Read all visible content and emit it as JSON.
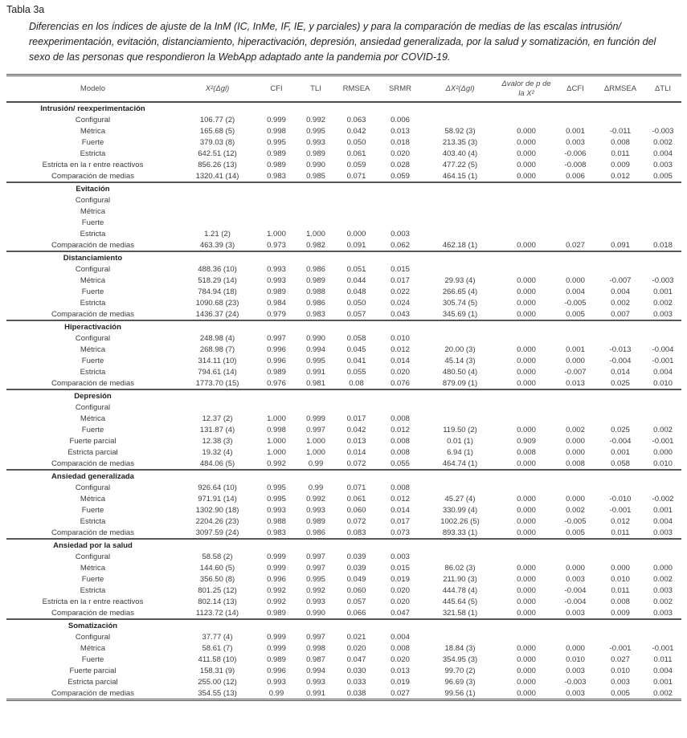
{
  "page": {
    "title": "Tabla 3a",
    "caption": "Diferencias en los índices de ajuste de la InM (IC, InMe, IF, IE, y parciales) y para la comparación de medias de las escalas intrusión/ reexperimentación, evitación, distanciamiento, hiperactivación, depresión, ansiedad generalizada, por la salud y somatización, en función del sexo de las personas que respondieron la WebApp adaptado ante la pandemia por COVID-19."
  },
  "table": {
    "columns": [
      "Modelo",
      "X²(Δgl)",
      "CFI",
      "TLI",
      "RMSEA",
      "SRMR",
      "ΔX²(Δgl)",
      "Δvalor de p de la X²",
      "ΔCFI",
      "ΔRMSEA",
      "ΔTLI"
    ],
    "sections": [
      {
        "name": "Intrusión/ reexperimentación",
        "rows": [
          {
            "label": "Configural",
            "cells": [
              "106.77 (2)",
              "0.999",
              "0.992",
              "0.063",
              "0.006",
              "",
              "",
              "",
              "",
              ""
            ]
          },
          {
            "label": "Métrica",
            "cells": [
              "165.68 (5)",
              "0.998",
              "0.995",
              "0.042",
              "0.013",
              "58.92 (3)",
              "0.000",
              "0.001",
              "-0.011",
              "-0.003"
            ]
          },
          {
            "label": "Fuerte",
            "cells": [
              "379.03 (8)",
              "0.995",
              "0.993",
              "0.050",
              "0.018",
              "213.35 (3)",
              "0.000",
              "0.003",
              "0.008",
              "0.002"
            ]
          },
          {
            "label": "Estricta",
            "cells": [
              "642.51 (12)",
              "0.989",
              "0.989",
              "0.061",
              "0.020",
              "403.40 (4)",
              "0.000",
              "-0.006",
              "0.011",
              "0.004"
            ]
          },
          {
            "label": "Estricta en la r entre reactivos",
            "cells": [
              "856.26 (13)",
              "0.989",
              "0.990",
              "0.059",
              "0.028",
              "477.22 (5)",
              "0.000",
              "-0.008",
              "0.009",
              "0.003"
            ]
          },
          {
            "label": "Comparación de medias",
            "cells": [
              "1320.41 (14)",
              "0.983",
              "0.985",
              "0.071",
              "0.059",
              "464.15 (1)",
              "0.000",
              "0.006",
              "0.012",
              "0.005"
            ]
          }
        ]
      },
      {
        "name": "Evitación",
        "rows": [
          {
            "label": "Configural",
            "cells": [
              "",
              "",
              "",
              "",
              "",
              "",
              "",
              "",
              "",
              ""
            ]
          },
          {
            "label": "Métrica",
            "cells": [
              "",
              "",
              "",
              "",
              "",
              "",
              "",
              "",
              "",
              ""
            ]
          },
          {
            "label": "Fuerte",
            "cells": [
              "",
              "",
              "",
              "",
              "",
              "",
              "",
              "",
              "",
              ""
            ]
          },
          {
            "label": "Estricta",
            "cells": [
              "1.21 (2)",
              "1.000",
              "1.000",
              "0.000",
              "0.003",
              "",
              "",
              "",
              "",
              ""
            ]
          },
          {
            "label": "Comparación de medias",
            "cells": [
              "463.39 (3)",
              "0.973",
              "0.982",
              "0.091",
              "0.062",
              "462.18 (1)",
              "0.000",
              "0.027",
              "0.091",
              "0.018"
            ]
          }
        ]
      },
      {
        "name": "Distanciamiento",
        "rows": [
          {
            "label": "Configural",
            "cells": [
              "488.36 (10)",
              "0.993",
              "0.986",
              "0.051",
              "0.015",
              "",
              "",
              "",
              "",
              ""
            ]
          },
          {
            "label": "Métrica",
            "cells": [
              "518.29 (14)",
              "0.993",
              "0.989",
              "0.044",
              "0.017",
              "29.93 (4)",
              "0.000",
              "0.000",
              "-0.007",
              "-0.003"
            ]
          },
          {
            "label": "Fuerte",
            "cells": [
              "784.94 (18)",
              "0.989",
              "0.988",
              "0.048",
              "0.022",
              "266.65 (4)",
              "0.000",
              "0.004",
              "0.004",
              "0.001"
            ]
          },
          {
            "label": "Estricta",
            "cells": [
              "1090.68 (23)",
              "0.984",
              "0.986",
              "0.050",
              "0.024",
              "305.74 (5)",
              "0.000",
              "-0.005",
              "0.002",
              "0.002"
            ]
          },
          {
            "label": "Comparación de medias",
            "cells": [
              "1436.37 (24)",
              "0.979",
              "0.983",
              "0.057",
              "0.043",
              "345.69 (1)",
              "0.000",
              "0.005",
              "0.007",
              "0.003"
            ]
          }
        ]
      },
      {
        "name": "Hiperactivación",
        "rows": [
          {
            "label": "Configural",
            "cells": [
              "248.98 (4)",
              "0.997",
              "0.990",
              "0.058",
              "0.010",
              "",
              "",
              "",
              "",
              ""
            ]
          },
          {
            "label": "Métrica",
            "cells": [
              "268.98 (7)",
              "0.996",
              "0.994",
              "0.045",
              "0.012",
              "20.00 (3)",
              "0.000",
              "0.001",
              "-0.013",
              "-0.004"
            ]
          },
          {
            "label": "Fuerte",
            "cells": [
              "314.11 (10)",
              "0.996",
              "0.995",
              "0.041",
              "0.014",
              "45.14 (3)",
              "0.000",
              "0.000",
              "-0.004",
              "-0.001"
            ]
          },
          {
            "label": "Estricta",
            "cells": [
              "794.61 (14)",
              "0.989",
              "0.991",
              "0.055",
              "0.020",
              "480.50 (4)",
              "0.000",
              "-0.007",
              "0.014",
              "0.004"
            ]
          },
          {
            "label": "Comparación de medias",
            "cells": [
              "1773.70 (15)",
              "0.976",
              "0.981",
              "0.08",
              "0.076",
              "879.09 (1)",
              "0.000",
              "0.013",
              "0.025",
              "0.010"
            ]
          }
        ]
      },
      {
        "name": "Depresión",
        "rows": [
          {
            "label": "Configural",
            "cells": [
              "",
              "",
              "",
              "",
              "",
              "",
              "",
              "",
              "",
              ""
            ]
          },
          {
            "label": "Métrica",
            "cells": [
              "12.37 (2)",
              "1.000",
              "0.999",
              "0.017",
              "0.008",
              "",
              "",
              "",
              "",
              ""
            ]
          },
          {
            "label": "Fuerte",
            "cells": [
              "131.87 (4)",
              "0.998",
              "0.997",
              "0.042",
              "0.012",
              "119.50 (2)",
              "0.000",
              "0.002",
              "0.025",
              "0.002"
            ]
          },
          {
            "label": "Fuerte parcial",
            "cells": [
              "12.38 (3)",
              "1.000",
              "1.000",
              "0.013",
              "0.008",
              "0.01 (1)",
              "0.909",
              "0.000",
              "-0.004",
              "-0.001"
            ]
          },
          {
            "label": "Estricta parcial",
            "cells": [
              "19.32 (4)",
              "1.000",
              "1.000",
              "0.014",
              "0.008",
              "6.94 (1)",
              "0.008",
              "0.000",
              "0.001",
              "0.000"
            ]
          },
          {
            "label": "Comparación de medias",
            "cells": [
              "484.06 (5)",
              "0.992",
              "0.99",
              "0.072",
              "0.055",
              "464.74 (1)",
              "0.000",
              "0.008",
              "0.058",
              "0.010"
            ]
          }
        ]
      },
      {
        "name": "Ansiedad generalizada",
        "rows": [
          {
            "label": "Configural",
            "cells": [
              "926.64 (10)",
              "0.995",
              "0.99",
              "0.071",
              "0.008",
              "",
              "",
              "",
              "",
              ""
            ]
          },
          {
            "label": "Métrica",
            "cells": [
              "971.91 (14)",
              "0.995",
              "0.992",
              "0.061",
              "0.012",
              "45.27 (4)",
              "0.000",
              "0.000",
              "-0.010",
              "-0.002"
            ]
          },
          {
            "label": "Fuerte",
            "cells": [
              "1302.90 (18)",
              "0.993",
              "0.993",
              "0.060",
              "0.014",
              "330.99 (4)",
              "0.000",
              "0.002",
              "-0.001",
              "0.001"
            ]
          },
          {
            "label": "Estricta",
            "cells": [
              "2204.26 (23)",
              "0.988",
              "0.989",
              "0.072",
              "0.017",
              "1002.26 (5)",
              "0.000",
              "-0.005",
              "0.012",
              "0.004"
            ]
          },
          {
            "label": "Comparación de medias",
            "cells": [
              "3097.59 (24)",
              "0.983",
              "0.986",
              "0.083",
              "0.073",
              "893.33 (1)",
              "0.000",
              "0.005",
              "0.011",
              "0.003"
            ]
          }
        ]
      },
      {
        "name": "Ansiedad por la salud",
        "rows": [
          {
            "label": "Configural",
            "cells": [
              "58.58 (2)",
              "0.999",
              "0.997",
              "0.039",
              "0.003",
              "",
              "",
              "",
              "",
              ""
            ]
          },
          {
            "label": "Métrica",
            "cells": [
              "144.60 (5)",
              "0.999",
              "0.997",
              "0.039",
              "0.015",
              "86.02 (3)",
              "0.000",
              "0.000",
              "0.000",
              "0.000"
            ]
          },
          {
            "label": "Fuerte",
            "cells": [
              "356.50 (8)",
              "0.996",
              "0.995",
              "0.049",
              "0.019",
              "211.90 (3)",
              "0.000",
              "0.003",
              "0.010",
              "0.002"
            ]
          },
          {
            "label": "Estricta",
            "cells": [
              "801.25 (12)",
              "0.992",
              "0.992",
              "0.060",
              "0.020",
              "444.78 (4)",
              "0.000",
              "-0.004",
              "0.011",
              "0.003"
            ]
          },
          {
            "label": "Estricta en la r entre reactivos",
            "cells": [
              "802.14 (13)",
              "0.992",
              "0.993",
              "0.057",
              "0.020",
              "445.64 (5)",
              "0.000",
              "-0.004",
              "0.008",
              "0.002"
            ]
          },
          {
            "label": "Comparación de medias",
            "cells": [
              "1123.72 (14)",
              "0.989",
              "0.990",
              "0.066",
              "0.047",
              "321.58 (1)",
              "0.000",
              "0.003",
              "0.009",
              "0.003"
            ]
          }
        ]
      },
      {
        "name": "Somatización",
        "rows": [
          {
            "label": "Configural",
            "cells": [
              "37.77 (4)",
              "0.999",
              "0.997",
              "0.021",
              "0.004",
              "",
              "",
              "",
              "",
              ""
            ]
          },
          {
            "label": "Métrica",
            "cells": [
              "58.61 (7)",
              "0.999",
              "0.998",
              "0.020",
              "0.008",
              "18.84 (3)",
              "0.000",
              "0.000",
              "-0.001",
              "-0.001"
            ]
          },
          {
            "label": "Fuerte",
            "cells": [
              "411.58 (10)",
              "0.989",
              "0.987",
              "0.047",
              "0.020",
              "354.95 (3)",
              "0.000",
              "0.010",
              "0.027",
              "0.011"
            ]
          },
          {
            "label": "Fuerte parcial",
            "cells": [
              "158.31 (9)",
              "0.996",
              "0.994",
              "0.030",
              "0.013",
              "99.70 (2)",
              "0.000",
              "0.003",
              "0.010",
              "0.004"
            ]
          },
          {
            "label": "Estricta parcial",
            "cells": [
              "255.00 (12)",
              "0.993",
              "0.993",
              "0.033",
              "0.019",
              "96.69 (3)",
              "0.000",
              "-0.003",
              "0.003",
              "0.001"
            ]
          },
          {
            "label": "Comparación de medias",
            "cells": [
              "354.55 (13)",
              "0.99",
              "0.991",
              "0.038",
              "0.027",
              "99.56 (1)",
              "0.000",
              "0.003",
              "0.005",
              "0.002"
            ]
          }
        ]
      }
    ]
  }
}
